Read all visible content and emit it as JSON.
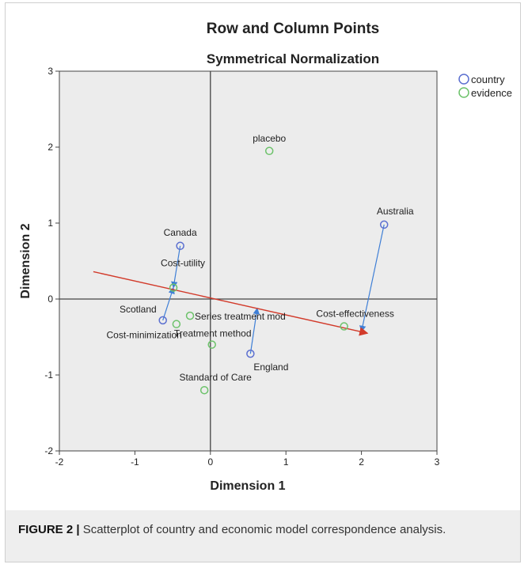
{
  "chart_data": {
    "type": "scatter",
    "title": "Row and Column Points",
    "subtitle": "Symmetrical Normalization",
    "xlabel": "Dimension 1",
    "ylabel": "Dimension 2",
    "xlim": [
      -2,
      3
    ],
    "ylim": [
      -2,
      3
    ],
    "xticks": [
      "-2",
      "-1",
      "0",
      "1",
      "2",
      "3"
    ],
    "yticks": [
      "-2",
      "-1",
      "0",
      "1",
      "2",
      "3"
    ],
    "grid": false,
    "legend_position": "top-right",
    "series": [
      {
        "name": "country",
        "color": "#5b6fd0",
        "points": [
          {
            "label": "Canada",
            "x": -0.4,
            "y": 0.7
          },
          {
            "label": "Scotland",
            "x": -0.63,
            "y": -0.28
          },
          {
            "label": "England",
            "x": 0.53,
            "y": -0.72
          },
          {
            "label": "Australia",
            "x": 2.3,
            "y": 0.98
          }
        ]
      },
      {
        "name": "evidence",
        "color": "#6cc26a",
        "points": [
          {
            "label": "placebo",
            "x": 0.78,
            "y": 1.95
          },
          {
            "label": "Cost-utility",
            "x": -0.49,
            "y": 0.15
          },
          {
            "label": "Series treatment mod",
            "x": -0.27,
            "y": -0.22
          },
          {
            "label": "Cost-minimization",
            "x": -0.45,
            "y": -0.33
          },
          {
            "label": "Treatment method",
            "x": 0.02,
            "y": -0.6
          },
          {
            "label": "Cost-effectiveness",
            "x": 1.77,
            "y": -0.36
          },
          {
            "label": "Standard of Care",
            "x": -0.08,
            "y": -1.2
          }
        ]
      }
    ],
    "arrows": [
      {
        "from": [
          -0.63,
          -0.28
        ],
        "to": [
          -0.49,
          0.15
        ],
        "color": "#3f7fd6"
      },
      {
        "from": [
          -0.4,
          0.7
        ],
        "to": [
          -0.49,
          0.15
        ],
        "color": "#3f7fd6"
      },
      {
        "from": [
          0.53,
          -0.72
        ],
        "to": [
          0.62,
          -0.12
        ],
        "color": "#3f7fd6"
      },
      {
        "from": [
          2.3,
          0.98
        ],
        "to": [
          2.0,
          -0.43
        ],
        "color": "#3f7fd6"
      },
      {
        "from": [
          -1.55,
          0.36
        ],
        "to": [
          2.08,
          -0.45
        ],
        "color": "#d23a2a"
      }
    ]
  },
  "caption": {
    "label": "FIGURE 2 |",
    "text": " Scatterplot of country and economic model correspondence analysis."
  }
}
